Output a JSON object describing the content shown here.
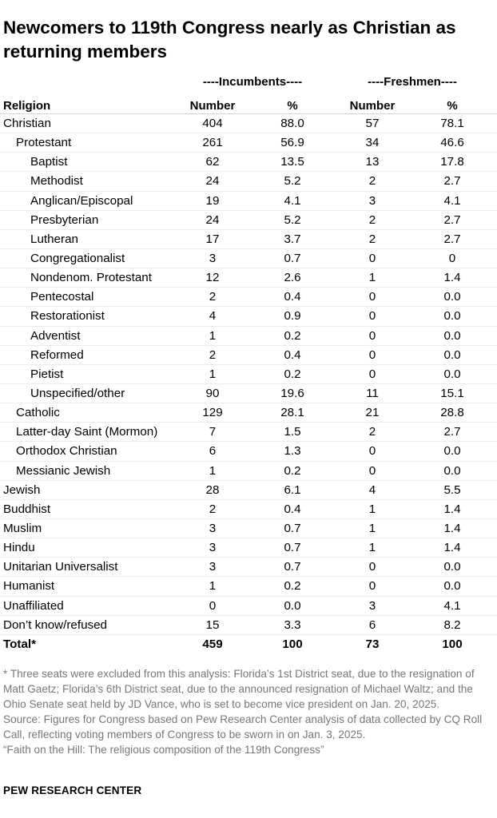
{
  "title": "Newcomers to 119th Congress nearly as Christian as returning members",
  "chart_data": {
    "type": "table",
    "title": "Newcomers to 119th Congress nearly as Christian as returning members",
    "group_headers": [
      "----Incumbents----",
      "----Freshmen----"
    ],
    "column_headers": [
      "Religion",
      "Number",
      "%",
      "Number",
      "%"
    ],
    "rows": [
      {
        "label": "Christian",
        "level": 0,
        "values": [
          "404",
          "88.0",
          "57",
          "78.1"
        ]
      },
      {
        "label": "Protestant",
        "level": 1,
        "values": [
          "261",
          "56.9",
          "34",
          "46.6"
        ]
      },
      {
        "label": "Baptist",
        "level": 2,
        "values": [
          "62",
          "13.5",
          "13",
          "17.8"
        ]
      },
      {
        "label": "Methodist",
        "level": 2,
        "values": [
          "24",
          "5.2",
          "2",
          "2.7"
        ]
      },
      {
        "label": "Anglican/Episcopal",
        "level": 2,
        "values": [
          "19",
          "4.1",
          "3",
          "4.1"
        ]
      },
      {
        "label": "Presbyterian",
        "level": 2,
        "values": [
          "24",
          "5.2",
          "2",
          "2.7"
        ]
      },
      {
        "label": "Lutheran",
        "level": 2,
        "values": [
          "17",
          "3.7",
          "2",
          "2.7"
        ]
      },
      {
        "label": "Congregationalist",
        "level": 2,
        "values": [
          "3",
          "0.7",
          "0",
          "0"
        ]
      },
      {
        "label": "Nondenom. Protestant",
        "level": 2,
        "values": [
          "12",
          "2.6",
          "1",
          "1.4"
        ]
      },
      {
        "label": "Pentecostal",
        "level": 2,
        "values": [
          "2",
          "0.4",
          "0",
          "0.0"
        ]
      },
      {
        "label": "Restorationist",
        "level": 2,
        "values": [
          "4",
          "0.9",
          "0",
          "0.0"
        ]
      },
      {
        "label": "Adventist",
        "level": 2,
        "values": [
          "1",
          "0.2",
          "0",
          "0.0"
        ]
      },
      {
        "label": "Reformed",
        "level": 2,
        "values": [
          "2",
          "0.4",
          "0",
          "0.0"
        ]
      },
      {
        "label": "Pietist",
        "level": 2,
        "values": [
          "1",
          "0.2",
          "0",
          "0.0"
        ]
      },
      {
        "label": "Unspecified/other",
        "level": 2,
        "values": [
          "90",
          "19.6",
          "11",
          "15.1"
        ]
      },
      {
        "label": "Catholic",
        "level": 1,
        "values": [
          "129",
          "28.1",
          "21",
          "28.8"
        ]
      },
      {
        "label": "Latter-day Saint (Mormon)",
        "level": 1,
        "values": [
          "7",
          "1.5",
          "2",
          "2.7"
        ]
      },
      {
        "label": "Orthodox Christian",
        "level": 1,
        "values": [
          "6",
          "1.3",
          "0",
          "0.0"
        ]
      },
      {
        "label": "Messianic Jewish",
        "level": 1,
        "values": [
          "1",
          "0.2",
          "0",
          "0.0"
        ]
      },
      {
        "label": "Jewish",
        "level": 0,
        "values": [
          "28",
          "6.1",
          "4",
          "5.5"
        ]
      },
      {
        "label": "Buddhist",
        "level": 0,
        "values": [
          "2",
          "0.4",
          "1",
          "1.4"
        ]
      },
      {
        "label": "Muslim",
        "level": 0,
        "values": [
          "3",
          "0.7",
          "1",
          "1.4"
        ]
      },
      {
        "label": "Hindu",
        "level": 0,
        "values": [
          "3",
          "0.7",
          "1",
          "1.4"
        ]
      },
      {
        "label": "Unitarian Universalist",
        "level": 0,
        "values": [
          "3",
          "0.7",
          "0",
          "0.0"
        ]
      },
      {
        "label": "Humanist",
        "level": 0,
        "values": [
          "1",
          "0.2",
          "0",
          "0.0"
        ]
      },
      {
        "label": "Unaffiliated",
        "level": 0,
        "values": [
          "0",
          "0.0",
          "3",
          "4.1"
        ]
      },
      {
        "label": "Don’t know/refused",
        "level": 0,
        "values": [
          "15",
          "3.3",
          "6",
          "8.2"
        ]
      }
    ],
    "total": {
      "label": "Total*",
      "values": [
        "459",
        "100",
        "73",
        "100"
      ]
    }
  },
  "notes": {
    "footnote": "* Three seats were excluded from this analysis: Florida’s 1st District seat, due to the resignation of Matt Gaetz; Florida’s 6th District seat, due to the announced resignation of Michael Waltz; and the Ohio Senate seat held by JD Vance, who is set to become vice president on Jan. 20, 2025.",
    "source": "Source: Figures for Congress based on Pew Research Center analysis of data collected by CQ Roll Call, reflecting voting members of Congress to be sworn in on Jan. 3, 2025.",
    "report": "“Faith on the Hill: The religious composition of the 119th Congress”"
  },
  "brand": "PEW RESEARCH CENTER",
  "colors": {
    "text": "#000000",
    "note": "#777777",
    "rule": "#d6d6d6"
  }
}
